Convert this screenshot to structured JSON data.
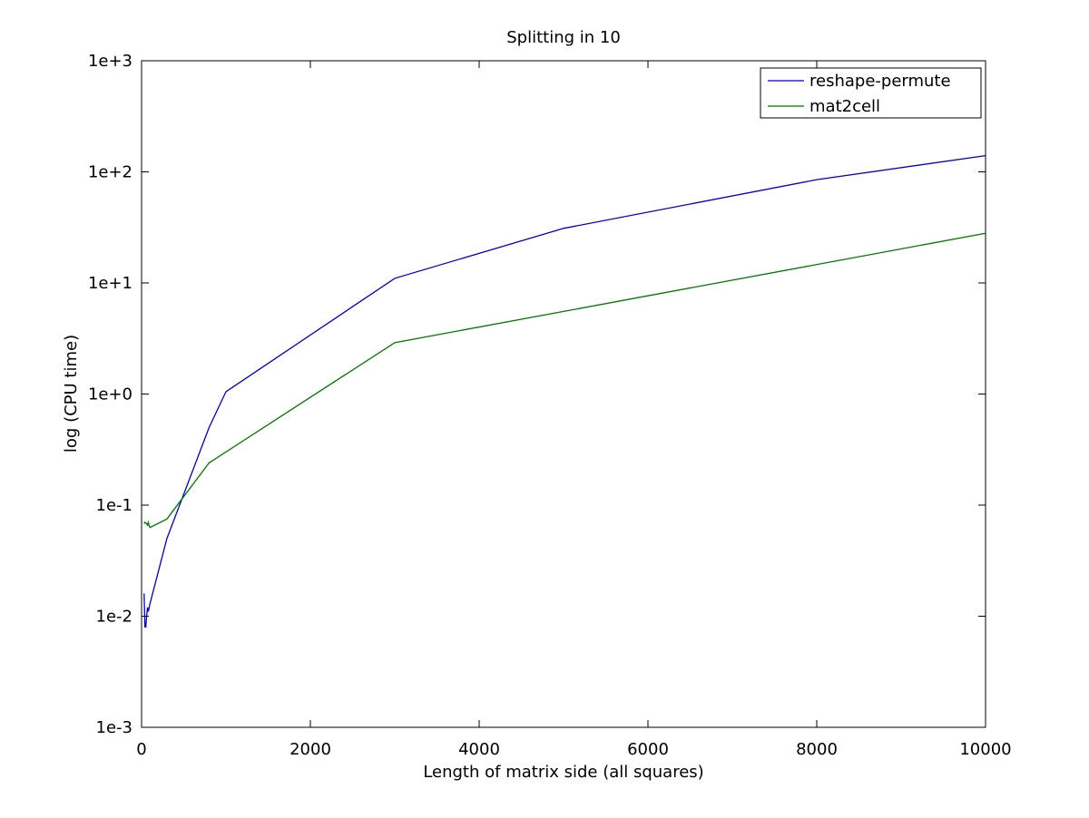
{
  "chart_data": {
    "type": "line",
    "title": "Splitting in 10",
    "xlabel": "Length of matrix side (all squares)",
    "ylabel": "log (CPU time)",
    "xlim": [
      0,
      10000
    ],
    "ylim": [
      0.001,
      1000
    ],
    "yscale": "log",
    "grid": false,
    "legend_position": "top-right",
    "x_ticks": [
      0,
      2000,
      4000,
      6000,
      8000,
      10000
    ],
    "x_tick_labels": [
      "0",
      "2000",
      "4000",
      "6000",
      "8000",
      "10000"
    ],
    "y_ticks": [
      0.001,
      0.01,
      0.1,
      1,
      10,
      100,
      1000
    ],
    "y_tick_labels": [
      "1e-3",
      "1e-2",
      "1e-1",
      "1e+0",
      "1e+1",
      "1e+2",
      "1e+3"
    ],
    "series": [
      {
        "name": "reshape-permute",
        "color": "#0000cc",
        "x": [
          30,
          40,
          50,
          60,
          70,
          80,
          90,
          100,
          300,
          800,
          1000,
          3000,
          5000,
          8000,
          10000
        ],
        "y": [
          0.016,
          0.008,
          0.008,
          0.01,
          0.012,
          0.011,
          0.012,
          0.013,
          0.05,
          0.5,
          1.05,
          11,
          31,
          85,
          140
        ]
      },
      {
        "name": "mat2cell",
        "color": "#007700",
        "x": [
          30,
          40,
          50,
          60,
          70,
          80,
          90,
          100,
          300,
          800,
          3000,
          10000
        ],
        "y": [
          0.068,
          0.07,
          0.069,
          0.068,
          0.066,
          0.07,
          0.065,
          0.063,
          0.075,
          0.24,
          2.9,
          28
        ]
      }
    ]
  }
}
